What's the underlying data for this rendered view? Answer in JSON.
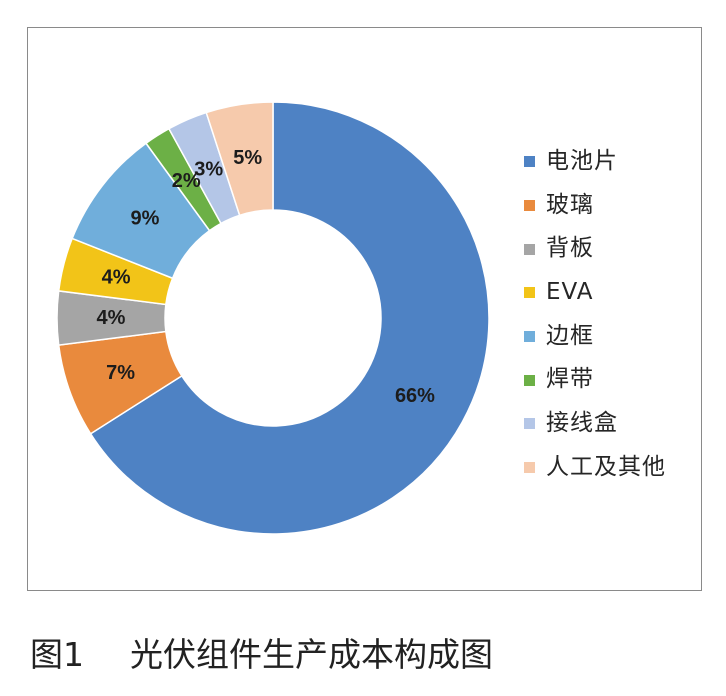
{
  "chart_data": {
    "type": "pie",
    "variant": "donut",
    "categories": [
      "电池片",
      "玻璃",
      "背板",
      "EVA",
      "边框",
      "焊带",
      "接线盒",
      "人工及其他"
    ],
    "values": [
      66,
      7,
      4,
      4,
      9,
      2,
      3,
      5
    ],
    "value_labels": [
      "66%",
      "7%",
      "4%",
      "4%",
      "9%",
      "2%",
      "3%",
      "5%"
    ],
    "colors": [
      "#4E82C4",
      "#E98A3D",
      "#A5A5A5",
      "#F2C418",
      "#70AEDB",
      "#6CB046",
      "#B4C6E7",
      "#F6CAAC"
    ],
    "legend": "right"
  },
  "caption": {
    "label": "图1",
    "text": "光伏组件生产成本构成图"
  }
}
